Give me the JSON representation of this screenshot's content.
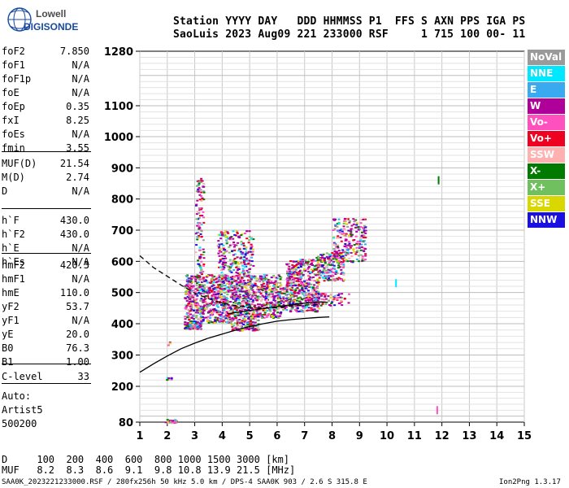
{
  "logo": {
    "line1": "Lowell",
    "line2": "DIGISONDE"
  },
  "header": {
    "labels_row": "Station YYYY DAY   DDD HHMMSS P1  FFS S AXN PPS IGA PS",
    "values_row": "SaoLuis 2023 Aug09 221 233000 RSF     1 715 100 00- 11"
  },
  "params_group1": [
    {
      "name": "foF2",
      "value": "7.850"
    },
    {
      "name": "foF1",
      "value": "N/A"
    },
    {
      "name": "foF1p",
      "value": "N/A"
    },
    {
      "name": "foE",
      "value": "N/A"
    },
    {
      "name": "foEp",
      "value": "0.35"
    },
    {
      "name": "fxI",
      "value": "8.25"
    },
    {
      "name": "foEs",
      "value": "N/A"
    },
    {
      "name": "fmin",
      "value": "3.55"
    }
  ],
  "params_group2": [
    {
      "name": "MUF(D)",
      "value": "21.54"
    },
    {
      "name": "M(D)",
      "value": "2.74"
    },
    {
      "name": "D",
      "value": "N/A"
    }
  ],
  "params_group3": [
    {
      "name": "h`F",
      "value": "430.0"
    },
    {
      "name": "h`F2",
      "value": "430.0"
    },
    {
      "name": "h`E",
      "value": "N/A"
    },
    {
      "name": "h`Es",
      "value": "N/A"
    }
  ],
  "params_group4": [
    {
      "name": "hmF2",
      "value": "420.3"
    },
    {
      "name": "hmF1",
      "value": "N/A"
    },
    {
      "name": "hmE",
      "value": "110.0"
    },
    {
      "name": "yF2",
      "value": "53.7"
    },
    {
      "name": "yF1",
      "value": "N/A"
    },
    {
      "name": "yE",
      "value": "20.0"
    },
    {
      "name": "B0",
      "value": "76.3"
    },
    {
      "name": "B1",
      "value": "1.00"
    }
  ],
  "params_group5": [
    {
      "name": "C-level",
      "value": "33"
    }
  ],
  "autoscale": {
    "line1": "Auto:",
    "line2": "Artist5",
    "line3": "500200"
  },
  "legend": [
    {
      "label": "NoVal",
      "color": "#9a9a9a"
    },
    {
      "label": "NNE",
      "color": "#00e8ff"
    },
    {
      "label": "E",
      "color": "#3aaaf0"
    },
    {
      "label": "W",
      "color": "#b0009a"
    },
    {
      "label": "Vo-",
      "color": "#ff50c0"
    },
    {
      "label": "Vo+",
      "color": "#ee0020"
    },
    {
      "label": "SSW",
      "color": "#ffb0b0"
    },
    {
      "label": "X-",
      "color": "#007a00"
    },
    {
      "label": "X+",
      "color": "#70c060"
    },
    {
      "label": "SSE",
      "color": "#d8d800"
    },
    {
      "label": "NNW",
      "color": "#1a10e0"
    }
  ],
  "distance_table": {
    "row1": "D     100  200  400  600  800 1000 1500 3000 [km]",
    "row2": "MUF   8.2  8.3  8.6  9.1  9.8 10.8 13.9 21.5 [MHz]"
  },
  "footer": {
    "left": "SAA0K_2023221233000.RSF / 280fx256h 50 kHz 5.0 km / DPS-4 SAA0K 903 / 2.6 S 315.8 E",
    "right": "Ion2Png 1.3.17"
  },
  "chart_data": {
    "type": "scatter",
    "title": "",
    "xlabel": "",
    "ylabel": "",
    "xlim": [
      1,
      15
    ],
    "ylim": [
      80,
      1280
    ],
    "x_ticks": [
      "1",
      "2",
      "3",
      "4",
      "5",
      "6",
      "7",
      "8",
      "9",
      "10",
      "11",
      "12",
      "13",
      "14",
      "15"
    ],
    "y_ticks": [
      {
        "value": 80,
        "label": "80"
      },
      {
        "value": 200,
        "label": "200"
      },
      {
        "value": 300,
        "label": "300"
      },
      {
        "value": 400,
        "label": "400"
      },
      {
        "value": 500,
        "label": "500"
      },
      {
        "value": 600,
        "label": "600"
      },
      {
        "value": 700,
        "label": "700"
      },
      {
        "value": 800,
        "label": "800"
      },
      {
        "value": 900,
        "label": "900"
      },
      {
        "value": 1000,
        "label": "1000"
      },
      {
        "value": 1100,
        "label": "1100"
      },
      {
        "value": 1280,
        "label": "1280"
      }
    ],
    "grid": true,
    "echo_regions": [
      {
        "x": [
          1.9,
          2.3
        ],
        "y": [
          78,
          92
        ],
        "density": 30
      },
      {
        "x": [
          1.95,
          2.15
        ],
        "y": [
          220,
          230
        ],
        "density": 10
      },
      {
        "x": [
          2.0,
          2.1
        ],
        "y": [
          330,
          345
        ],
        "density": 4
      },
      {
        "x": [
          2.6,
          3.2
        ],
        "y": [
          385,
          405
        ],
        "density": 120
      },
      {
        "x": [
          2.6,
          4.4
        ],
        "y": [
          405,
          560
        ],
        "density": 700
      },
      {
        "x": [
          3.0,
          3.3
        ],
        "y": [
          560,
          870
        ],
        "density": 110
      },
      {
        "x": [
          3.8,
          5.1
        ],
        "y": [
          560,
          700
        ],
        "density": 230
      },
      {
        "x": [
          4.3,
          5.3
        ],
        "y": [
          380,
          420
        ],
        "density": 120
      },
      {
        "x": [
          4.4,
          6.1
        ],
        "y": [
          420,
          560
        ],
        "density": 560
      },
      {
        "x": [
          6.1,
          7.5
        ],
        "y": [
          440,
          520
        ],
        "density": 280
      },
      {
        "x": [
          6.3,
          7.5
        ],
        "y": [
          520,
          610
        ],
        "density": 240
      },
      {
        "x": [
          7.0,
          8.6
        ],
        "y": [
          460,
          500
        ],
        "density": 80
      },
      {
        "x": [
          7.4,
          8.4
        ],
        "y": [
          540,
          630
        ],
        "density": 180
      },
      {
        "x": [
          8.0,
          9.2
        ],
        "y": [
          600,
          740
        ],
        "density": 220
      }
    ],
    "isolated_points": [
      {
        "x": 11.85,
        "y": 860,
        "color": "#007a00"
      },
      {
        "x": 10.3,
        "y": 530,
        "color": "#00e8ff"
      },
      {
        "x": 11.8,
        "y": 120,
        "color": "#ff50c0"
      }
    ],
    "traces": [
      {
        "name": "trace-virtual-height",
        "style": "solid",
        "points": [
          [
            1.0,
            245
          ],
          [
            1.5,
            272
          ],
          [
            2.0,
            297
          ],
          [
            2.5,
            320
          ],
          [
            3.0,
            338
          ],
          [
            3.5,
            354
          ],
          [
            4.0,
            367
          ],
          [
            4.5,
            380
          ],
          [
            5.0,
            391
          ],
          [
            5.5,
            400
          ],
          [
            6.0,
            408
          ],
          [
            6.5,
            413
          ],
          [
            7.0,
            417
          ],
          [
            7.5,
            420
          ],
          [
            7.9,
            422
          ]
        ]
      },
      {
        "name": "trace-virtual-height-return",
        "style": "solid",
        "points": [
          [
            4.2,
            432
          ],
          [
            5.0,
            442
          ],
          [
            6.0,
            455
          ],
          [
            7.0,
            466
          ],
          [
            7.6,
            470
          ],
          [
            7.85,
            468
          ]
        ]
      },
      {
        "name": "trace-profile",
        "style": "dashed",
        "points": [
          [
            1.0,
            618
          ],
          [
            1.5,
            580
          ],
          [
            2.0,
            552
          ],
          [
            2.5,
            524
          ],
          [
            3.0,
            498
          ],
          [
            3.5,
            480
          ],
          [
            4.0,
            466
          ],
          [
            4.5,
            458
          ],
          [
            5.0,
            452
          ],
          [
            5.5,
            449
          ],
          [
            6.0,
            451
          ],
          [
            6.5,
            457
          ],
          [
            7.0,
            460
          ],
          [
            7.5,
            461
          ]
        ]
      }
    ]
  }
}
